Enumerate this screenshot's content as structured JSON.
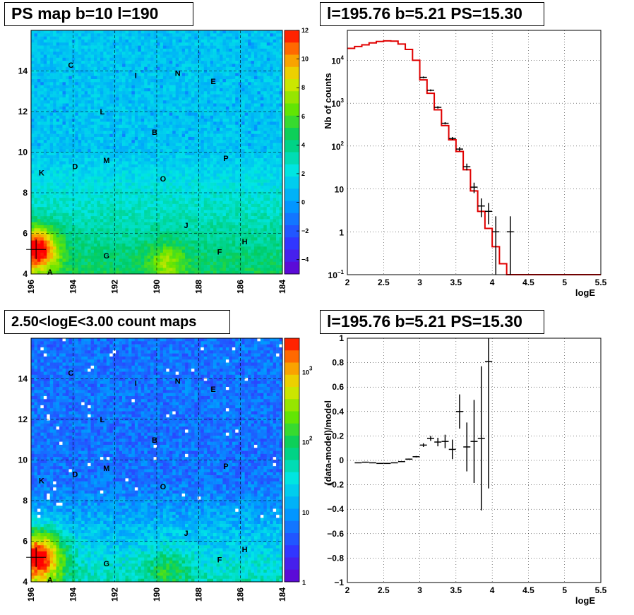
{
  "panels": {
    "tl_title": "PS map b=10 l=190",
    "tr_title": "l=195.76 b=5.21 PS=15.30",
    "bl_title": "2.50<logE<3.00 count maps",
    "br_title": "l=195.76 b=5.21 PS=15.30"
  },
  "chart_data": [
    {
      "type": "heatmap",
      "title": "PS map b=10 l=190",
      "x_ticks": [
        "196",
        "194",
        "192",
        "190",
        "188",
        "186",
        "184"
      ],
      "y_ticks": [
        "4",
        "6",
        "8",
        "10",
        "12",
        "14"
      ],
      "colorbar_ticks": [
        "12",
        "10",
        "8",
        "6",
        "4",
        "2",
        "0",
        "-2",
        "-4"
      ],
      "colorbar_range": [
        -5,
        12
      ],
      "hotspot": {
        "l": 195.76,
        "b": 5.21,
        "value": 15.3
      },
      "sources": [
        {
          "label": "C",
          "l": 194.1,
          "b": 14.3
        },
        {
          "label": "I",
          "l": 191.0,
          "b": 13.8
        },
        {
          "label": "N",
          "l": 189.0,
          "b": 13.9
        },
        {
          "label": "E",
          "l": 187.3,
          "b": 13.5
        },
        {
          "label": "L",
          "l": 192.6,
          "b": 12.0
        },
        {
          "label": "B",
          "l": 190.1,
          "b": 11.0
        },
        {
          "label": "M",
          "l": 192.4,
          "b": 9.6
        },
        {
          "label": "P",
          "l": 186.7,
          "b": 9.7
        },
        {
          "label": "D",
          "l": 193.9,
          "b": 9.3
        },
        {
          "label": "K",
          "l": 195.5,
          "b": 9.0
        },
        {
          "label": "O",
          "l": 189.7,
          "b": 8.7
        },
        {
          "label": "J",
          "l": 188.6,
          "b": 6.4
        },
        {
          "label": "H",
          "l": 185.8,
          "b": 5.6
        },
        {
          "label": "F",
          "l": 187.0,
          "b": 5.1
        },
        {
          "label": "G",
          "l": 192.4,
          "b": 4.9
        },
        {
          "label": "A",
          "l": 195.1,
          "b": 4.1
        }
      ]
    },
    {
      "type": "line",
      "title": "l=195.76 b=5.21 PS=15.30",
      "xlabel": "logE",
      "ylabel": "Nb of counts",
      "xlim": [
        2,
        5.5
      ],
      "ylim": [
        0.1,
        50000
      ],
      "y_scale": "log",
      "x_ticks": [
        "2",
        "2.5",
        "3",
        "3.5",
        "4",
        "4.5",
        "5",
        "5.5"
      ],
      "y_ticks": [
        {
          "v": 0.1,
          "base": "10",
          "exp": "−1"
        },
        {
          "v": 1,
          "base": "1",
          "exp": ""
        },
        {
          "v": 10,
          "base": "10",
          "exp": ""
        },
        {
          "v": 100,
          "base": "10",
          "exp": "2"
        },
        {
          "v": 1000,
          "base": "10",
          "exp": "3"
        },
        {
          "v": 10000,
          "base": "10",
          "exp": "4"
        }
      ],
      "model_bins": [
        {
          "x0": 2.0,
          "x1": 2.1,
          "y": 19000
        },
        {
          "x0": 2.1,
          "x1": 2.2,
          "y": 21000
        },
        {
          "x0": 2.2,
          "x1": 2.3,
          "y": 23000
        },
        {
          "x0": 2.3,
          "x1": 2.4,
          "y": 25500
        },
        {
          "x0": 2.4,
          "x1": 2.5,
          "y": 27500
        },
        {
          "x0": 2.5,
          "x1": 2.6,
          "y": 28500
        },
        {
          "x0": 2.6,
          "x1": 2.7,
          "y": 28000
        },
        {
          "x0": 2.7,
          "x1": 2.8,
          "y": 24000
        },
        {
          "x0": 2.8,
          "x1": 2.9,
          "y": 18000
        },
        {
          "x0": 2.9,
          "x1": 3.0,
          "y": 10000
        },
        {
          "x0": 3.0,
          "x1": 3.1,
          "y": 3500
        },
        {
          "x0": 3.1,
          "x1": 3.2,
          "y": 1700
        },
        {
          "x0": 3.2,
          "x1": 3.3,
          "y": 700
        },
        {
          "x0": 3.3,
          "x1": 3.4,
          "y": 300
        },
        {
          "x0": 3.4,
          "x1": 3.5,
          "y": 140
        },
        {
          "x0": 3.5,
          "x1": 3.6,
          "y": 75
        },
        {
          "x0": 3.6,
          "x1": 3.7,
          "y": 28
        },
        {
          "x0": 3.7,
          "x1": 3.8,
          "y": 9
        },
        {
          "x0": 3.8,
          "x1": 3.9,
          "y": 3
        },
        {
          "x0": 3.9,
          "x1": 4.0,
          "y": 1.2
        },
        {
          "x0": 4.0,
          "x1": 4.1,
          "y": 0.45
        },
        {
          "x0": 4.1,
          "x1": 4.2,
          "y": 0.18
        },
        {
          "x0": 4.2,
          "x1": 5.5,
          "y": 0.1
        }
      ],
      "data_points": [
        {
          "x": 3.05,
          "y": 4000,
          "lo": 3800,
          "hi": 4200
        },
        {
          "x": 3.15,
          "y": 2000,
          "lo": 1900,
          "hi": 2100
        },
        {
          "x": 3.25,
          "y": 800,
          "lo": 750,
          "hi": 850
        },
        {
          "x": 3.35,
          "y": 340,
          "lo": 320,
          "hi": 360
        },
        {
          "x": 3.45,
          "y": 150,
          "lo": 140,
          "hi": 163
        },
        {
          "x": 3.55,
          "y": 85,
          "lo": 76,
          "hi": 95
        },
        {
          "x": 3.65,
          "y": 33,
          "lo": 27,
          "hi": 39
        },
        {
          "x": 3.75,
          "y": 11,
          "lo": 8,
          "hi": 14
        },
        {
          "x": 3.85,
          "y": 4,
          "lo": 2.2,
          "hi": 6
        },
        {
          "x": 3.95,
          "y": 3,
          "lo": 1.5,
          "hi": 4.7
        },
        {
          "x": 4.05,
          "y": 1,
          "lo": 0.1,
          "hi": 2.3
        },
        {
          "x": 4.25,
          "y": 1,
          "lo": 0.1,
          "hi": 2.3
        }
      ]
    },
    {
      "type": "heatmap",
      "title": "2.50<logE<3.00 count maps",
      "x_ticks": [
        "196",
        "194",
        "192",
        "190",
        "188",
        "186",
        "184"
      ],
      "y_ticks": [
        "4",
        "6",
        "8",
        "10",
        "12",
        "14"
      ],
      "colorbar_ticks": [
        {
          "v": 1,
          "base": "1",
          "exp": ""
        },
        {
          "v": 10,
          "base": "10",
          "exp": ""
        },
        {
          "v": 100,
          "base": "10",
          "exp": "2"
        },
        {
          "v": 1000,
          "base": "10",
          "exp": "3"
        }
      ],
      "colorbar_range": [
        1,
        3000
      ],
      "colorbar_scale": "log"
    },
    {
      "type": "scatter",
      "title": "l=195.76 b=5.21 PS=15.30",
      "xlabel": "logE",
      "ylabel": "(data-model)/model",
      "xlim": [
        2,
        5.5
      ],
      "ylim": [
        -1,
        1
      ],
      "x_ticks": [
        "2",
        "2.5",
        "3",
        "3.5",
        "4",
        "4.5",
        "5",
        "5.5"
      ],
      "y_ticks": [
        "1",
        "0.8",
        "0.6",
        "0.4",
        "0.2",
        "0",
        "−0.2",
        "−0.4",
        "−0.6",
        "−0.8",
        "−1"
      ],
      "points": [
        {
          "x": 2.15,
          "y": -0.02,
          "err": 0.003
        },
        {
          "x": 2.25,
          "y": -0.015,
          "err": 0.003
        },
        {
          "x": 2.35,
          "y": -0.02,
          "err": 0.003
        },
        {
          "x": 2.45,
          "y": -0.025,
          "err": 0.003
        },
        {
          "x": 2.55,
          "y": -0.025,
          "err": 0.003
        },
        {
          "x": 2.65,
          "y": -0.02,
          "err": 0.003
        },
        {
          "x": 2.75,
          "y": -0.01,
          "err": 0.004
        },
        {
          "x": 2.85,
          "y": 0.01,
          "err": 0.005
        },
        {
          "x": 2.95,
          "y": 0.03,
          "err": 0.006
        },
        {
          "x": 3.05,
          "y": 0.125,
          "err": 0.015
        },
        {
          "x": 3.15,
          "y": 0.18,
          "err": 0.02
        },
        {
          "x": 3.25,
          "y": 0.15,
          "err": 0.035
        },
        {
          "x": 3.35,
          "y": 0.155,
          "err": 0.055
        },
        {
          "x": 3.45,
          "y": 0.09,
          "err": 0.08
        },
        {
          "x": 3.55,
          "y": 0.4,
          "err": 0.14
        },
        {
          "x": 3.65,
          "y": 0.11,
          "err": 0.2
        },
        {
          "x": 3.75,
          "y": 0.155,
          "err": 0.34
        },
        {
          "x": 3.85,
          "y": 0.18,
          "err": 0.59
        },
        {
          "x": 3.95,
          "y": 0.81,
          "err": 1.04
        }
      ]
    }
  ]
}
